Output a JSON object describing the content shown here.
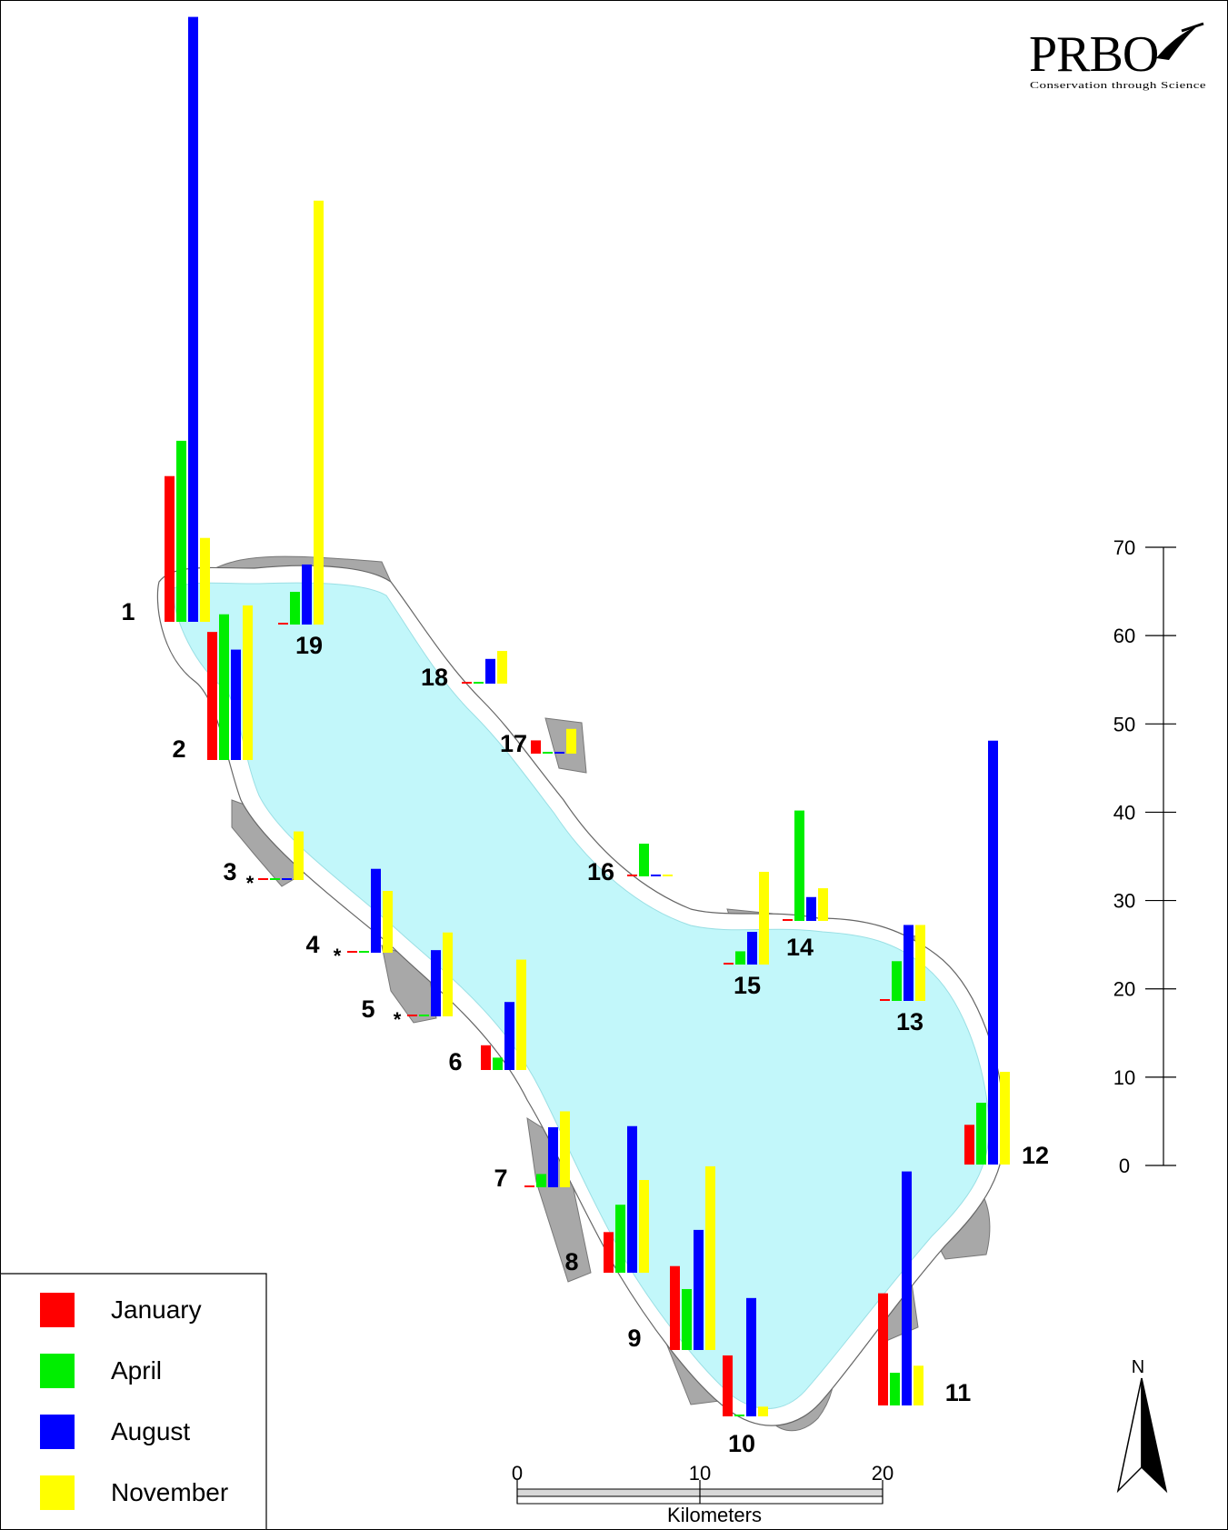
{
  "logo": {
    "name": "PRBO",
    "tagline": "Conservation through Science"
  },
  "colors": {
    "January": "#ff0000",
    "April": "#00ee00",
    "August": "#0000ff",
    "November": "#ffff00",
    "water": "#c2f7fa",
    "shore": "#ffffff",
    "marsh": "#a8a8a8"
  },
  "legend": {
    "items": [
      {
        "label": "January",
        "color": "#ff0000"
      },
      {
        "label": "April",
        "color": "#00ee00"
      },
      {
        "label": "August",
        "color": "#0000ff"
      },
      {
        "label": "November",
        "color": "#ffff00"
      }
    ]
  },
  "value_axis": {
    "ticks": [
      "0",
      "10",
      "20",
      "30",
      "40",
      "50",
      "60",
      "70"
    ],
    "range": [
      0,
      70
    ]
  },
  "scale_bar": {
    "ticks": [
      "0",
      "10",
      "20"
    ],
    "unit": "Kilometers"
  },
  "north_arrow": {
    "label": "N"
  },
  "chart_data": {
    "type": "bar",
    "series_names": [
      "January",
      "April",
      "August",
      "November"
    ],
    "value_range": [
      0,
      70
    ],
    "sites": [
      {
        "id": "1",
        "values": [
          16.5,
          20.5,
          68.5,
          9.5
        ]
      },
      {
        "id": "2",
        "values": [
          14.5,
          16.5,
          12.5,
          17.5
        ]
      },
      {
        "id": "3",
        "values": [
          0,
          0,
          0,
          5.5
        ],
        "asterisk": true
      },
      {
        "id": "4",
        "values": [
          0,
          0,
          9.5,
          7
        ],
        "asterisk": true
      },
      {
        "id": "5",
        "values": [
          0,
          0,
          7.5,
          9.5
        ],
        "asterisk": true
      },
      {
        "id": "6",
        "values": [
          2.8,
          1.4,
          7.7,
          12.5
        ]
      },
      {
        "id": "7",
        "values": [
          0,
          1.5,
          6.8,
          8.6
        ]
      },
      {
        "id": "8",
        "values": [
          4.6,
          7.7,
          16.6,
          10.5
        ]
      },
      {
        "id": "9",
        "values": [
          9.5,
          6.9,
          13.6,
          20.8
        ]
      },
      {
        "id": "10",
        "values": [
          6.9,
          0,
          13.4,
          1.1
        ]
      },
      {
        "id": "11",
        "values": [
          12.7,
          3.7,
          26.5,
          4.5
        ]
      },
      {
        "id": "12",
        "values": [
          4.5,
          7,
          48,
          10.5
        ]
      },
      {
        "id": "13",
        "values": [
          0,
          4.5,
          8.6,
          8.6
        ]
      },
      {
        "id": "14",
        "values": [
          0,
          12.5,
          2.7,
          3.7
        ]
      },
      {
        "id": "15",
        "values": [
          0,
          1.5,
          3.7,
          10.5
        ]
      },
      {
        "id": "16",
        "values": [
          0,
          3.7,
          0,
          0
        ]
      },
      {
        "id": "17",
        "values": [
          1.5,
          0,
          0,
          2.8
        ]
      },
      {
        "id": "18",
        "values": [
          0,
          0,
          2.8,
          3.7
        ]
      },
      {
        "id": "19",
        "values": [
          0,
          3.7,
          6.8,
          48
        ]
      }
    ]
  }
}
